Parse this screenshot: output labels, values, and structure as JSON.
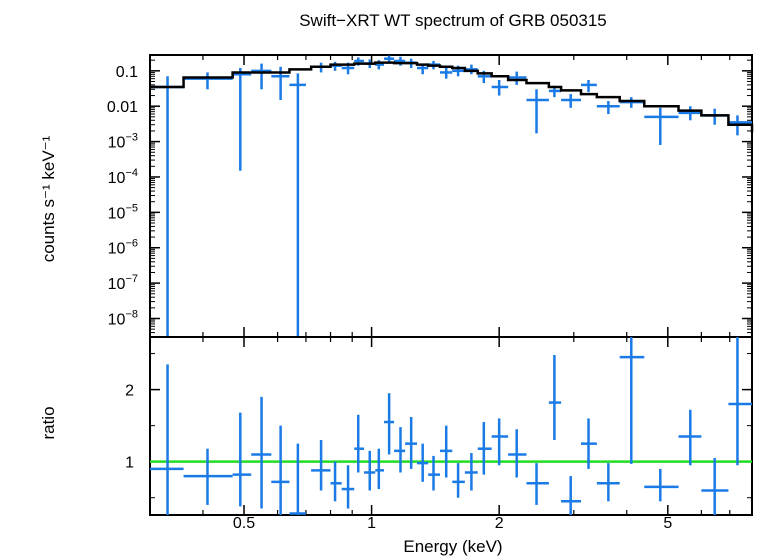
{
  "chart_data": [
    {
      "type": "scatter",
      "title": "Swift−XRT WT spectrum of GRB 050315",
      "ylabel": "counts s⁻¹ keV⁻¹",
      "xlabel": "",
      "x_scale": "log",
      "y_scale": "log",
      "xlim": [
        0.3,
        7.9
      ],
      "ylim": [
        3e-09,
        0.28
      ],
      "y_ticks": [
        {
          "value": 0.1,
          "text": "0.1"
        },
        {
          "value": 0.01,
          "text": "0.01"
        },
        {
          "value": 0.001,
          "base": "10",
          "exp": "−3"
        },
        {
          "value": 0.0001,
          "base": "10",
          "exp": "−4"
        },
        {
          "value": 1e-05,
          "base": "10",
          "exp": "−5"
        },
        {
          "value": 1e-06,
          "base": "10",
          "exp": "−6"
        },
        {
          "value": 1e-07,
          "base": "10",
          "exp": "−7"
        },
        {
          "value": 1e-08,
          "base": "10",
          "exp": "−8"
        }
      ],
      "data_color": "#1a7ae6",
      "model_color": "#000000",
      "data": [
        {
          "x": 0.33,
          "xlo": 0.3,
          "xhi": 0.36,
          "y": 0.035,
          "ylo": 3e-09,
          "yhi": 0.07
        },
        {
          "x": 0.41,
          "xlo": 0.36,
          "xhi": 0.47,
          "y": 0.06,
          "ylo": 0.03,
          "yhi": 0.09
        },
        {
          "x": 0.49,
          "xlo": 0.47,
          "xhi": 0.52,
          "y": 0.08,
          "ylo": 0.00015,
          "yhi": 0.12
        },
        {
          "x": 0.55,
          "xlo": 0.52,
          "xhi": 0.58,
          "y": 0.1,
          "ylo": 0.03,
          "yhi": 0.16
        },
        {
          "x": 0.61,
          "xlo": 0.58,
          "xhi": 0.64,
          "y": 0.07,
          "ylo": 0.015,
          "yhi": 0.13
        },
        {
          "x": 0.67,
          "xlo": 0.64,
          "xhi": 0.7,
          "y": 0.04,
          "ylo": 3e-09,
          "yhi": 0.085
        },
        {
          "x": 0.76,
          "xlo": 0.72,
          "xhi": 0.8,
          "y": 0.13,
          "ylo": 0.09,
          "yhi": 0.17
        },
        {
          "x": 0.82,
          "xlo": 0.8,
          "xhi": 0.85,
          "y": 0.14,
          "ylo": 0.1,
          "yhi": 0.18
        },
        {
          "x": 0.88,
          "xlo": 0.85,
          "xhi": 0.91,
          "y": 0.12,
          "ylo": 0.08,
          "yhi": 0.17
        },
        {
          "x": 0.93,
          "xlo": 0.91,
          "xhi": 0.96,
          "y": 0.19,
          "ylo": 0.14,
          "yhi": 0.24
        },
        {
          "x": 0.99,
          "xlo": 0.96,
          "xhi": 1.02,
          "y": 0.16,
          "ylo": 0.12,
          "yhi": 0.21
        },
        {
          "x": 1.04,
          "xlo": 1.02,
          "xhi": 1.07,
          "y": 0.15,
          "ylo": 0.11,
          "yhi": 0.2
        },
        {
          "x": 1.1,
          "xlo": 1.07,
          "xhi": 1.13,
          "y": 0.22,
          "ylo": 0.17,
          "yhi": 0.27
        },
        {
          "x": 1.17,
          "xlo": 1.13,
          "xhi": 1.2,
          "y": 0.19,
          "ylo": 0.14,
          "yhi": 0.25
        },
        {
          "x": 1.24,
          "xlo": 1.2,
          "xhi": 1.28,
          "y": 0.17,
          "ylo": 0.12,
          "yhi": 0.22
        },
        {
          "x": 1.32,
          "xlo": 1.28,
          "xhi": 1.36,
          "y": 0.12,
          "ylo": 0.08,
          "yhi": 0.16
        },
        {
          "x": 1.4,
          "xlo": 1.36,
          "xhi": 1.45,
          "y": 0.15,
          "ylo": 0.11,
          "yhi": 0.19
        },
        {
          "x": 1.5,
          "xlo": 1.45,
          "xhi": 1.55,
          "y": 0.09,
          "ylo": 0.06,
          "yhi": 0.13
        },
        {
          "x": 1.6,
          "xlo": 1.55,
          "xhi": 1.66,
          "y": 0.1,
          "ylo": 0.07,
          "yhi": 0.14
        },
        {
          "x": 1.72,
          "xlo": 1.66,
          "xhi": 1.78,
          "y": 0.11,
          "ylo": 0.08,
          "yhi": 0.15
        },
        {
          "x": 1.84,
          "xlo": 1.78,
          "xhi": 1.92,
          "y": 0.07,
          "ylo": 0.045,
          "yhi": 0.1
        },
        {
          "x": 2.0,
          "xlo": 1.92,
          "xhi": 2.1,
          "y": 0.035,
          "ylo": 0.02,
          "yhi": 0.055
        },
        {
          "x": 2.2,
          "xlo": 2.1,
          "xhi": 2.32,
          "y": 0.065,
          "ylo": 0.04,
          "yhi": 0.095
        },
        {
          "x": 2.45,
          "xlo": 2.32,
          "xhi": 2.62,
          "y": 0.015,
          "ylo": 0.0017,
          "yhi": 0.03
        },
        {
          "x": 2.7,
          "xlo": 2.62,
          "xhi": 2.8,
          "y": 0.027,
          "ylo": 0.018,
          "yhi": 0.038
        },
        {
          "x": 2.95,
          "xlo": 2.8,
          "xhi": 3.12,
          "y": 0.015,
          "ylo": 0.009,
          "yhi": 0.022
        },
        {
          "x": 3.25,
          "xlo": 3.12,
          "xhi": 3.4,
          "y": 0.04,
          "ylo": 0.025,
          "yhi": 0.055
        },
        {
          "x": 3.62,
          "xlo": 3.4,
          "xhi": 3.85,
          "y": 0.01,
          "ylo": 0.006,
          "yhi": 0.014
        },
        {
          "x": 4.1,
          "xlo": 3.85,
          "xhi": 4.4,
          "y": 0.013,
          "ylo": 0.009,
          "yhi": 0.018
        },
        {
          "x": 4.8,
          "xlo": 4.4,
          "xhi": 5.3,
          "y": 0.005,
          "ylo": 0.0008,
          "yhi": 0.009
        },
        {
          "x": 5.65,
          "xlo": 5.3,
          "xhi": 6.0,
          "y": 0.0065,
          "ylo": 0.004,
          "yhi": 0.01
        },
        {
          "x": 6.45,
          "xlo": 6.0,
          "xhi": 6.95,
          "y": 0.0055,
          "ylo": 0.003,
          "yhi": 0.0085
        },
        {
          "x": 7.3,
          "xlo": 6.95,
          "xhi": 7.9,
          "y": 0.0035,
          "ylo": 0.0015,
          "yhi": 0.0055
        }
      ],
      "model": [
        {
          "x": 0.3,
          "y": 0.035
        },
        {
          "x": 0.36,
          "y": 0.065
        },
        {
          "x": 0.47,
          "y": 0.09
        },
        {
          "x": 0.64,
          "y": 0.11
        },
        {
          "x": 0.72,
          "y": 0.13
        },
        {
          "x": 0.8,
          "y": 0.15
        },
        {
          "x": 0.91,
          "y": 0.16
        },
        {
          "x": 1.02,
          "y": 0.17
        },
        {
          "x": 1.13,
          "y": 0.165
        },
        {
          "x": 1.28,
          "y": 0.15
        },
        {
          "x": 1.36,
          "y": 0.14
        },
        {
          "x": 1.45,
          "y": 0.13
        },
        {
          "x": 1.55,
          "y": 0.12
        },
        {
          "x": 1.66,
          "y": 0.1
        },
        {
          "x": 1.78,
          "y": 0.085
        },
        {
          "x": 1.92,
          "y": 0.07
        },
        {
          "x": 2.1,
          "y": 0.055
        },
        {
          "x": 2.32,
          "y": 0.045
        },
        {
          "x": 2.62,
          "y": 0.035
        },
        {
          "x": 2.8,
          "y": 0.028
        },
        {
          "x": 3.12,
          "y": 0.022
        },
        {
          "x": 3.4,
          "y": 0.018
        },
        {
          "x": 3.85,
          "y": 0.014
        },
        {
          "x": 4.4,
          "y": 0.01
        },
        {
          "x": 5.3,
          "y": 0.0075
        },
        {
          "x": 6.0,
          "y": 0.0055
        },
        {
          "x": 6.95,
          "y": 0.003
        },
        {
          "x": 7.9,
          "y": 0.0018
        }
      ]
    },
    {
      "type": "scatter",
      "ylabel": "ratio",
      "xlabel": "Energy (keV)",
      "x_scale": "log",
      "y_scale": "linear",
      "xlim": [
        0.3,
        7.9
      ],
      "ylim": [
        0.26,
        2.73
      ],
      "x_ticks": [
        {
          "value": 0.5,
          "text": "0.5"
        },
        {
          "value": 1,
          "text": "1"
        },
        {
          "value": 2,
          "text": "2"
        },
        {
          "value": 5,
          "text": "5"
        }
      ],
      "y_ticks": [
        {
          "value": 1,
          "text": "1"
        },
        {
          "value": 2,
          "text": "2"
        }
      ],
      "reference_line": {
        "y": 1,
        "color": "#22dd22"
      },
      "data_color": "#1a7ae6",
      "data": [
        {
          "x": 0.33,
          "xlo": 0.3,
          "xhi": 0.36,
          "y": 0.9,
          "ylo": 0.26,
          "yhi": 2.35
        },
        {
          "x": 0.41,
          "xlo": 0.36,
          "xhi": 0.47,
          "y": 0.8,
          "ylo": 0.4,
          "yhi": 1.18
        },
        {
          "x": 0.49,
          "xlo": 0.47,
          "xhi": 0.52,
          "y": 0.82,
          "ylo": 0.38,
          "yhi": 1.68
        },
        {
          "x": 0.55,
          "xlo": 0.52,
          "xhi": 0.58,
          "y": 1.1,
          "ylo": 0.35,
          "yhi": 1.9
        },
        {
          "x": 0.61,
          "xlo": 0.58,
          "xhi": 0.64,
          "y": 0.72,
          "ylo": 0.26,
          "yhi": 1.5
        },
        {
          "x": 0.67,
          "xlo": 0.64,
          "xhi": 0.7,
          "y": 0.28,
          "ylo": 0.26,
          "yhi": 1.25
        },
        {
          "x": 0.76,
          "xlo": 0.72,
          "xhi": 0.8,
          "y": 0.88,
          "ylo": 0.6,
          "yhi": 1.3
        },
        {
          "x": 0.82,
          "xlo": 0.8,
          "xhi": 0.85,
          "y": 0.7,
          "ylo": 0.45,
          "yhi": 1.0
        },
        {
          "x": 0.88,
          "xlo": 0.85,
          "xhi": 0.91,
          "y": 0.62,
          "ylo": 0.35,
          "yhi": 0.95
        },
        {
          "x": 0.93,
          "xlo": 0.91,
          "xhi": 0.96,
          "y": 1.18,
          "ylo": 0.85,
          "yhi": 1.65
        },
        {
          "x": 0.99,
          "xlo": 0.96,
          "xhi": 1.02,
          "y": 0.85,
          "ylo": 0.6,
          "yhi": 1.15
        },
        {
          "x": 1.04,
          "xlo": 1.02,
          "xhi": 1.07,
          "y": 0.88,
          "ylo": 0.62,
          "yhi": 1.18
        },
        {
          "x": 1.1,
          "xlo": 1.07,
          "xhi": 1.13,
          "y": 1.55,
          "ylo": 1.1,
          "yhi": 1.95
        },
        {
          "x": 1.17,
          "xlo": 1.13,
          "xhi": 1.2,
          "y": 1.15,
          "ylo": 0.85,
          "yhi": 1.48
        },
        {
          "x": 1.24,
          "xlo": 1.2,
          "xhi": 1.28,
          "y": 1.25,
          "ylo": 0.9,
          "yhi": 1.62
        },
        {
          "x": 1.32,
          "xlo": 1.28,
          "xhi": 1.36,
          "y": 0.98,
          "ylo": 0.72,
          "yhi": 1.25
        },
        {
          "x": 1.4,
          "xlo": 1.36,
          "xhi": 1.45,
          "y": 0.82,
          "ylo": 0.6,
          "yhi": 1.08
        },
        {
          "x": 1.5,
          "xlo": 1.45,
          "xhi": 1.55,
          "y": 1.15,
          "ylo": 0.78,
          "yhi": 1.5
        },
        {
          "x": 1.6,
          "xlo": 1.55,
          "xhi": 1.66,
          "y": 0.72,
          "ylo": 0.5,
          "yhi": 0.98
        },
        {
          "x": 1.72,
          "xlo": 1.66,
          "xhi": 1.78,
          "y": 0.85,
          "ylo": 0.6,
          "yhi": 1.12
        },
        {
          "x": 1.84,
          "xlo": 1.78,
          "xhi": 1.92,
          "y": 1.18,
          "ylo": 0.82,
          "yhi": 1.55
        },
        {
          "x": 2.0,
          "xlo": 1.92,
          "xhi": 2.1,
          "y": 1.35,
          "ylo": 0.95,
          "yhi": 1.6
        },
        {
          "x": 2.2,
          "xlo": 2.1,
          "xhi": 2.32,
          "y": 1.1,
          "ylo": 0.78,
          "yhi": 1.45
        },
        {
          "x": 2.45,
          "xlo": 2.32,
          "xhi": 2.62,
          "y": 0.7,
          "ylo": 0.4,
          "yhi": 0.98
        },
        {
          "x": 2.7,
          "xlo": 2.62,
          "xhi": 2.8,
          "y": 1.82,
          "ylo": 1.3,
          "yhi": 2.48
        },
        {
          "x": 2.95,
          "xlo": 2.8,
          "xhi": 3.12,
          "y": 0.45,
          "ylo": 0.26,
          "yhi": 0.8
        },
        {
          "x": 3.25,
          "xlo": 3.12,
          "xhi": 3.4,
          "y": 1.25,
          "ylo": 0.9,
          "yhi": 1.6
        },
        {
          "x": 3.62,
          "xlo": 3.4,
          "xhi": 3.85,
          "y": 0.7,
          "ylo": 0.45,
          "yhi": 0.98
        },
        {
          "x": 4.1,
          "xlo": 3.85,
          "xhi": 4.4,
          "y": 2.45,
          "ylo": 0.97,
          "yhi": 2.73
        },
        {
          "x": 4.8,
          "xlo": 4.4,
          "xhi": 5.3,
          "y": 0.65,
          "ylo": 0.45,
          "yhi": 0.9
        },
        {
          "x": 5.65,
          "xlo": 5.3,
          "xhi": 6.0,
          "y": 1.35,
          "ylo": 0.95,
          "yhi": 1.72
        },
        {
          "x": 6.45,
          "xlo": 6.0,
          "xhi": 6.95,
          "y": 0.6,
          "ylo": 0.26,
          "yhi": 1.05
        },
        {
          "x": 7.3,
          "xlo": 6.95,
          "xhi": 7.9,
          "y": 1.8,
          "ylo": 0.95,
          "yhi": 2.73
        }
      ]
    }
  ]
}
